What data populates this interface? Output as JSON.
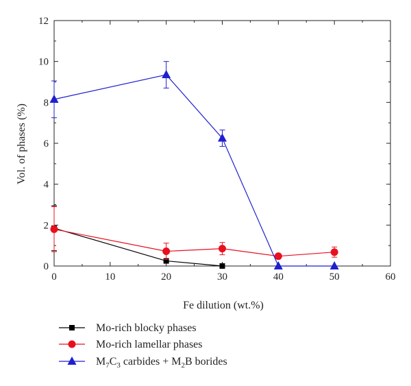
{
  "chart_data": {
    "type": "line",
    "xlabel": "Fe dilution (wt.%)",
    "ylabel": "Vol. of phases (%)",
    "xlim": [
      0,
      60
    ],
    "ylim": [
      0,
      12
    ],
    "xticks": [
      "0",
      "10",
      "20",
      "30",
      "40",
      "50",
      "60"
    ],
    "yticks": [
      "0",
      "2",
      "4",
      "6",
      "8",
      "10",
      "12"
    ],
    "grid": false,
    "legend_position": "bottom-left",
    "series": [
      {
        "name": "Mo-rich blocky phases",
        "color": "#000000",
        "marker": "square",
        "x": [
          0,
          20,
          30
        ],
        "y": [
          1.85,
          0.25,
          0.0
        ],
        "err": [
          1.1,
          0.0,
          0.0
        ]
      },
      {
        "name": "Mo-rich lamellar phases",
        "color": "#e8101f",
        "marker": "circle",
        "x": [
          0,
          20,
          30,
          40,
          50
        ],
        "y": [
          1.8,
          0.72,
          0.85,
          0.48,
          0.68
        ],
        "err": [
          1.1,
          0.4,
          0.3,
          0.0,
          0.25
        ]
      },
      {
        "name_parts": [
          "M",
          "7",
          "C",
          "3",
          " carbides + M",
          "2",
          "B borides"
        ],
        "color": "#1f1fce",
        "marker": "triangle",
        "x": [
          0,
          20,
          30,
          40,
          50
        ],
        "y": [
          8.15,
          9.35,
          6.25,
          0.0,
          0.0
        ],
        "err": [
          0.9,
          0.65,
          0.4,
          0.0,
          0.0
        ]
      }
    ]
  }
}
